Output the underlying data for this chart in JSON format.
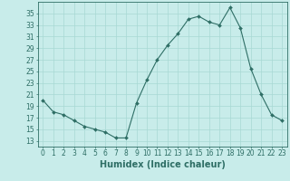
{
  "x": [
    0,
    1,
    2,
    3,
    4,
    5,
    6,
    7,
    8,
    9,
    10,
    11,
    12,
    13,
    14,
    15,
    16,
    17,
    18,
    19,
    20,
    21,
    22,
    23
  ],
  "y": [
    20,
    18,
    17.5,
    16.5,
    15.5,
    15,
    14.5,
    13.5,
    13.5,
    19.5,
    23.5,
    27,
    29.5,
    31.5,
    34,
    34.5,
    33.5,
    33,
    36,
    32.5,
    25.5,
    21,
    17.5,
    16.5
  ],
  "line_color": "#2e6e65",
  "marker": "D",
  "marker_size": 2,
  "bg_color": "#c8ecea",
  "grid_color": "#a8d8d4",
  "xlabel": "Humidex (Indice chaleur)",
  "xlim": [
    -0.5,
    23.5
  ],
  "ylim": [
    12,
    37
  ],
  "yticks": [
    13,
    15,
    17,
    19,
    21,
    23,
    25,
    27,
    29,
    31,
    33,
    35
  ],
  "xtick_labels": [
    "0",
    "1",
    "2",
    "3",
    "4",
    "5",
    "6",
    "7",
    "8",
    "9",
    "10",
    "11",
    "12",
    "13",
    "14",
    "15",
    "16",
    "17",
    "18",
    "19",
    "20",
    "21",
    "22",
    "23"
  ],
  "axis_color": "#2e6e65",
  "tick_color": "#2e6e65",
  "label_fontsize": 7,
  "tick_fontsize": 5.5
}
